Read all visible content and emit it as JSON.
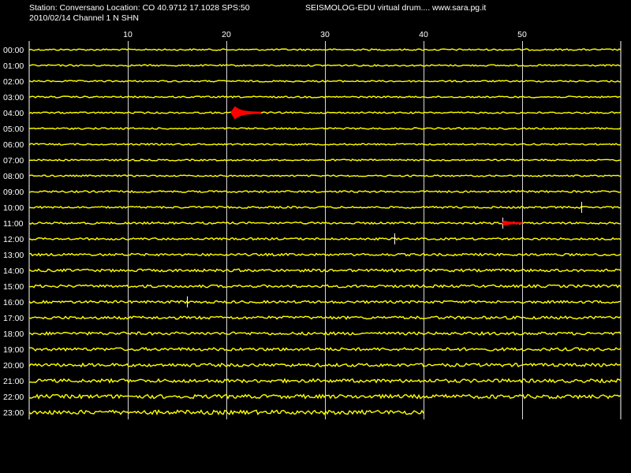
{
  "header": {
    "station_line": "Station: Conversano Location: CO 40.9712 17.1028 SPS:50",
    "date_line": "2010/02/14  Channel 1 N SHN",
    "site_line": "SEISMOLOG-EDU virtual drum.... www.sara.pg.it"
  },
  "chart_data": {
    "type": "line",
    "title": "",
    "xlabel": "",
    "ylabel": "",
    "x_unit_range": [
      0,
      60
    ],
    "x_ticks": [
      10,
      20,
      30,
      40,
      50
    ],
    "rows": [
      "00:00",
      "01:00",
      "02:00",
      "03:00",
      "04:00",
      "05:00",
      "06:00",
      "07:00",
      "08:00",
      "09:00",
      "10:00",
      "11:00",
      "12:00",
      "13:00",
      "14:00",
      "15:00",
      "16:00",
      "17:00",
      "18:00",
      "19:00",
      "20:00",
      "21:00",
      "22:00",
      "23:00"
    ],
    "trace_end": {
      "row": "23:00",
      "minute": 40
    },
    "noise_amplitude_by_row": [
      1.0,
      1.0,
      1.0,
      1.0,
      1.0,
      1.0,
      1.0,
      1.0,
      1.0,
      1.2,
      1.2,
      1.3,
      1.3,
      1.5,
      1.7,
      1.7,
      1.6,
      1.8,
      1.8,
      1.9,
      2.0,
      2.2,
      2.4,
      2.6
    ],
    "events": [
      {
        "row": "04:00",
        "start_minute": 20.5,
        "end_minute": 23.5,
        "peak_amplitude": 7,
        "color": "#ff0000"
      },
      {
        "row": "11:00",
        "start_minute": 48,
        "end_minute": 50,
        "peak_amplitude": 2,
        "color": "#ff0000"
      }
    ],
    "spikes": [
      {
        "row": "10:00",
        "minute": 56
      },
      {
        "row": "11:00",
        "minute": 48
      },
      {
        "row": "12:00",
        "minute": 37
      },
      {
        "row": "16:00",
        "minute": 16
      }
    ],
    "grid": true,
    "colors": {
      "background": "#000000",
      "trace": "#ffff00",
      "event": "#ff0000",
      "grid": "#ffffff",
      "text": "#ffffff"
    }
  }
}
